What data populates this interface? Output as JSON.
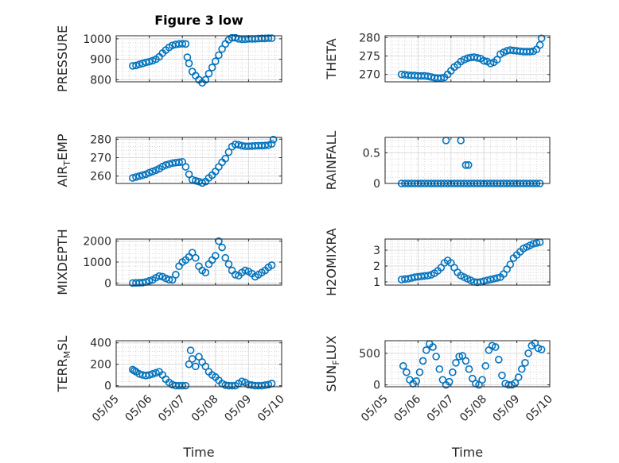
{
  "figure_title": "Figure 3 low",
  "colors": {
    "marker": "#0072BD",
    "axis": "#262626",
    "grid": "#c8c8c8",
    "background": "#ffffff"
  },
  "chart_data": [
    {
      "type": "scatter",
      "panel": "top-left",
      "title": "Figure 3 low",
      "ylabel": "PRESSURE",
      "ylabel_sub": "",
      "ylabel_tail": "",
      "xlabel": "",
      "xlim": [
        0,
        5
      ],
      "ylim": [
        790,
        1015
      ],
      "yticks": [
        800,
        900,
        1000
      ],
      "xticks": [
        0,
        1,
        2,
        3,
        4,
        5
      ],
      "xticklabels": [],
      "grid": true,
      "grid_minor": true,
      "x": [
        0.5,
        0.6,
        0.7,
        0.8,
        0.9,
        1.0,
        1.1,
        1.2,
        1.3,
        1.4,
        1.5,
        1.6,
        1.7,
        1.8,
        1.9,
        2.0,
        2.1,
        2.15,
        2.2,
        2.3,
        2.4,
        2.5,
        2.6,
        2.7,
        2.8,
        2.9,
        3.0,
        3.1,
        3.2,
        3.3,
        3.4,
        3.5,
        3.6,
        3.7,
        3.8,
        3.9,
        4.0,
        4.1,
        4.2,
        4.3,
        4.4,
        4.5,
        4.6,
        4.7
      ],
      "y": [
        868,
        870,
        875,
        880,
        885,
        888,
        893,
        900,
        912,
        930,
        945,
        958,
        968,
        972,
        975,
        976,
        975,
        910,
        880,
        840,
        820,
        800,
        785,
        800,
        830,
        860,
        890,
        920,
        950,
        975,
        995,
        1005,
        1005,
        1000,
        998,
        998,
        1000,
        1000,
        1000,
        1001,
        1002,
        1002,
        1003,
        1003
      ]
    },
    {
      "type": "scatter",
      "panel": "top-right",
      "title": "",
      "ylabel": "THETA",
      "ylabel_sub": "",
      "ylabel_tail": "",
      "xlabel": "",
      "xlim": [
        0,
        5
      ],
      "ylim": [
        268,
        280.5
      ],
      "yticks": [
        270,
        275,
        280
      ],
      "xticks": [
        0,
        1,
        2,
        3,
        4,
        5
      ],
      "xticklabels": [],
      "grid": true,
      "grid_minor": true,
      "x": [
        0.5,
        0.6,
        0.7,
        0.8,
        0.9,
        1.0,
        1.1,
        1.2,
        1.3,
        1.4,
        1.5,
        1.6,
        1.7,
        1.8,
        1.9,
        2.0,
        2.1,
        2.2,
        2.3,
        2.4,
        2.5,
        2.6,
        2.7,
        2.8,
        2.9,
        3.0,
        3.1,
        3.2,
        3.3,
        3.4,
        3.5,
        3.6,
        3.7,
        3.8,
        3.9,
        4.0,
        4.1,
        4.2,
        4.3,
        4.4,
        4.5,
        4.6,
        4.7,
        4.75
      ],
      "y": [
        270.0,
        269.9,
        269.8,
        269.7,
        269.7,
        269.6,
        269.6,
        269.6,
        269.5,
        269.3,
        269.1,
        269.0,
        269.0,
        269.2,
        270.0,
        271.0,
        272.0,
        272.6,
        273.5,
        274.0,
        274.4,
        274.6,
        274.7,
        274.5,
        274.3,
        273.7,
        273.5,
        273.0,
        273.3,
        274.0,
        275.5,
        276.0,
        276.4,
        276.6,
        276.5,
        276.4,
        276.3,
        276.2,
        276.2,
        276.2,
        276.3,
        276.8,
        278.0,
        279.8
      ]
    },
    {
      "type": "scatter",
      "panel": "row2-left",
      "title": "",
      "ylabel": "AIR",
      "ylabel_sub": "T",
      "ylabel_tail": "EMP",
      "xlabel": "",
      "xlim": [
        0,
        5
      ],
      "ylim": [
        256,
        281
      ],
      "yticks": [
        260,
        270,
        280
      ],
      "xticks": [
        0,
        1,
        2,
        3,
        4,
        5
      ],
      "xticklabels": [],
      "grid": true,
      "grid_minor": true,
      "x": [
        0.5,
        0.6,
        0.7,
        0.8,
        0.9,
        1.0,
        1.1,
        1.2,
        1.3,
        1.4,
        1.5,
        1.6,
        1.7,
        1.8,
        1.9,
        2.0,
        2.1,
        2.2,
        2.3,
        2.4,
        2.5,
        2.6,
        2.7,
        2.8,
        2.9,
        3.0,
        3.1,
        3.2,
        3.3,
        3.4,
        3.5,
        3.6,
        3.7,
        3.8,
        3.9,
        4.0,
        4.1,
        4.2,
        4.3,
        4.4,
        4.5,
        4.6,
        4.7,
        4.75
      ],
      "y": [
        259.0,
        259.5,
        260.0,
        260.5,
        261.0,
        261.8,
        262.5,
        263.2,
        264.0,
        265.2,
        266.0,
        266.5,
        267.0,
        267.3,
        267.5,
        267.7,
        265.0,
        261.0,
        258.0,
        257.5,
        257.0,
        256.3,
        257.0,
        259.0,
        260.5,
        262.5,
        265.0,
        267.5,
        269.5,
        273.0,
        276.0,
        277.2,
        277.0,
        276.5,
        276.2,
        276.2,
        276.3,
        276.4,
        276.5,
        276.5,
        276.6,
        276.8,
        277.5,
        279.8
      ]
    },
    {
      "type": "scatter",
      "panel": "row2-right",
      "title": "",
      "ylabel": "RAINFALL",
      "ylabel_sub": "",
      "ylabel_tail": "",
      "xlabel": "",
      "xlim": [
        0,
        5
      ],
      "ylim": [
        0,
        0.75
      ],
      "yticks": [
        0,
        0.5
      ],
      "xticks": [
        0,
        1,
        2,
        3,
        4,
        5
      ],
      "xticklabels": [],
      "grid": true,
      "grid_minor": true,
      "x": [
        0.5,
        0.6,
        0.7,
        0.8,
        0.9,
        1.0,
        1.1,
        1.2,
        1.3,
        1.4,
        1.5,
        1.6,
        1.7,
        1.8,
        1.9,
        2.0,
        2.1,
        2.2,
        2.3,
        2.4,
        2.5,
        2.6,
        2.7,
        2.8,
        2.9,
        3.0,
        3.1,
        3.2,
        3.3,
        3.4,
        3.5,
        3.6,
        3.7,
        3.8,
        3.9,
        4.0,
        4.1,
        4.2,
        4.3,
        4.4,
        4.5,
        4.6,
        4.7,
        1.85,
        2.3,
        2.45,
        2.53
      ],
      "y": [
        0,
        0,
        0,
        0,
        0,
        0,
        0,
        0,
        0,
        0,
        0,
        0,
        0,
        0,
        0,
        0,
        0,
        0,
        0,
        0,
        0,
        0,
        0,
        0,
        0,
        0,
        0,
        0,
        0,
        0,
        0,
        0,
        0,
        0,
        0,
        0,
        0,
        0,
        0,
        0,
        0,
        0,
        0,
        0.7,
        0.7,
        0.3,
        0.3
      ]
    },
    {
      "type": "scatter",
      "panel": "row3-left",
      "title": "",
      "ylabel": "MIXDEPTH",
      "ylabel_sub": "",
      "ylabel_tail": "",
      "xlabel": "",
      "xlim": [
        0,
        5
      ],
      "ylim": [
        -100,
        2100
      ],
      "yticks": [
        0,
        1000,
        2000
      ],
      "xticks": [
        0,
        1,
        2,
        3,
        4,
        5
      ],
      "xticklabels": [],
      "grid": true,
      "grid_minor": true,
      "x": [
        0.5,
        0.6,
        0.7,
        0.8,
        0.9,
        1.0,
        1.1,
        1.2,
        1.3,
        1.4,
        1.5,
        1.6,
        1.7,
        1.8,
        1.9,
        2.0,
        2.1,
        2.2,
        2.3,
        2.4,
        2.5,
        2.6,
        2.7,
        2.8,
        2.9,
        3.0,
        3.1,
        3.2,
        3.3,
        3.4,
        3.5,
        3.6,
        3.7,
        3.8,
        3.9,
        4.0,
        4.1,
        4.2,
        4.3,
        4.4,
        4.5,
        4.6,
        4.7
      ],
      "y": [
        0,
        5,
        10,
        20,
        50,
        100,
        150,
        250,
        330,
        300,
        220,
        160,
        150,
        400,
        800,
        1000,
        1100,
        1250,
        1450,
        1200,
        800,
        600,
        500,
        900,
        1100,
        1300,
        2000,
        1700,
        1200,
        900,
        600,
        400,
        350,
        500,
        600,
        550,
        450,
        300,
        400,
        500,
        600,
        750,
        850
      ]
    },
    {
      "type": "scatter",
      "panel": "row3-right",
      "title": "",
      "ylabel": "H2OMIXRA",
      "ylabel_sub": "",
      "ylabel_tail": "",
      "xlabel": "",
      "xlim": [
        0,
        5
      ],
      "ylim": [
        0.8,
        3.7
      ],
      "yticks": [
        1,
        2,
        3
      ],
      "xticks": [
        0,
        1,
        2,
        3,
        4,
        5
      ],
      "xticklabels": [],
      "grid": true,
      "grid_minor": true,
      "x": [
        0.5,
        0.6,
        0.7,
        0.8,
        0.9,
        1.0,
        1.1,
        1.2,
        1.3,
        1.4,
        1.5,
        1.6,
        1.7,
        1.8,
        1.9,
        2.0,
        2.1,
        2.2,
        2.3,
        2.4,
        2.5,
        2.6,
        2.7,
        2.8,
        2.9,
        3.0,
        3.1,
        3.2,
        3.3,
        3.4,
        3.5,
        3.6,
        3.7,
        3.8,
        3.9,
        4.0,
        4.1,
        4.2,
        4.3,
        4.4,
        4.5,
        4.6,
        4.7
      ],
      "y": [
        1.15,
        1.18,
        1.2,
        1.25,
        1.3,
        1.32,
        1.35,
        1.38,
        1.4,
        1.45,
        1.55,
        1.7,
        1.9,
        2.2,
        2.35,
        2.2,
        1.9,
        1.6,
        1.4,
        1.3,
        1.2,
        1.1,
        1.0,
        0.98,
        1.0,
        1.05,
        1.1,
        1.15,
        1.2,
        1.25,
        1.3,
        1.5,
        1.8,
        2.1,
        2.5,
        2.7,
        2.9,
        3.1,
        3.2,
        3.3,
        3.4,
        3.45,
        3.5
      ]
    },
    {
      "type": "scatter",
      "panel": "row4-left",
      "title": "",
      "ylabel": "TERR",
      "ylabel_sub": "M",
      "ylabel_tail": "SL",
      "xlabel": "Time",
      "xlim": [
        0,
        5
      ],
      "ylim": [
        -10,
        420
      ],
      "yticks": [
        0,
        200,
        400
      ],
      "xticks": [
        0,
        1,
        2,
        3,
        4,
        5
      ],
      "xticklabels": [
        "05/05",
        "05/06",
        "05/07",
        "05/08",
        "05/09",
        "05/10"
      ],
      "grid": true,
      "grid_minor": true,
      "x": [
        0.5,
        0.55,
        0.6,
        0.7,
        0.8,
        0.9,
        1.0,
        1.1,
        1.2,
        1.3,
        1.4,
        1.5,
        1.6,
        1.7,
        1.8,
        1.9,
        2.0,
        2.1,
        2.2,
        2.25,
        2.3,
        2.4,
        2.5,
        2.6,
        2.7,
        2.8,
        2.9,
        3.0,
        3.1,
        3.2,
        3.3,
        3.4,
        3.5,
        3.6,
        3.7,
        3.8,
        3.9,
        4.0,
        4.1,
        4.2,
        4.3,
        4.4,
        4.5,
        4.6,
        4.7
      ],
      "y": [
        150,
        140,
        130,
        110,
        100,
        95,
        100,
        110,
        120,
        130,
        100,
        60,
        30,
        10,
        0,
        0,
        0,
        0,
        200,
        330,
        250,
        180,
        270,
        220,
        180,
        130,
        100,
        80,
        50,
        20,
        5,
        0,
        0,
        0,
        20,
        40,
        30,
        10,
        5,
        0,
        0,
        0,
        5,
        10,
        20
      ]
    },
    {
      "type": "scatter",
      "panel": "row4-right",
      "title": "",
      "ylabel": "SUN",
      "ylabel_sub": "F",
      "ylabel_tail": "LUX",
      "xlabel": "Time",
      "xlim": [
        0,
        5
      ],
      "ylim": [
        -30,
        700
      ],
      "yticks": [
        0,
        500
      ],
      "xticks": [
        0,
        1,
        2,
        3,
        4,
        5
      ],
      "xticklabels": [
        "05/05",
        "05/06",
        "05/07",
        "05/08",
        "05/09",
        "05/10"
      ],
      "grid": true,
      "grid_minor": true,
      "x": [
        0.55,
        0.65,
        0.75,
        0.85,
        0.95,
        1.05,
        1.15,
        1.25,
        1.35,
        1.45,
        1.55,
        1.65,
        1.75,
        1.85,
        1.95,
        2.05,
        2.15,
        2.25,
        2.35,
        2.45,
        2.55,
        2.65,
        2.75,
        2.85,
        2.95,
        3.05,
        3.15,
        3.25,
        3.35,
        3.45,
        3.55,
        3.65,
        3.75,
        3.85,
        3.95,
        4.05,
        4.15,
        4.25,
        4.35,
        4.45,
        4.55,
        4.65,
        4.75
      ],
      "y": [
        300,
        200,
        80,
        20,
        60,
        200,
        380,
        550,
        650,
        600,
        450,
        250,
        80,
        0,
        50,
        200,
        350,
        450,
        460,
        380,
        250,
        100,
        20,
        0,
        80,
        300,
        550,
        620,
        600,
        400,
        150,
        20,
        0,
        0,
        30,
        120,
        250,
        350,
        500,
        620,
        660,
        580,
        560
      ]
    }
  ]
}
